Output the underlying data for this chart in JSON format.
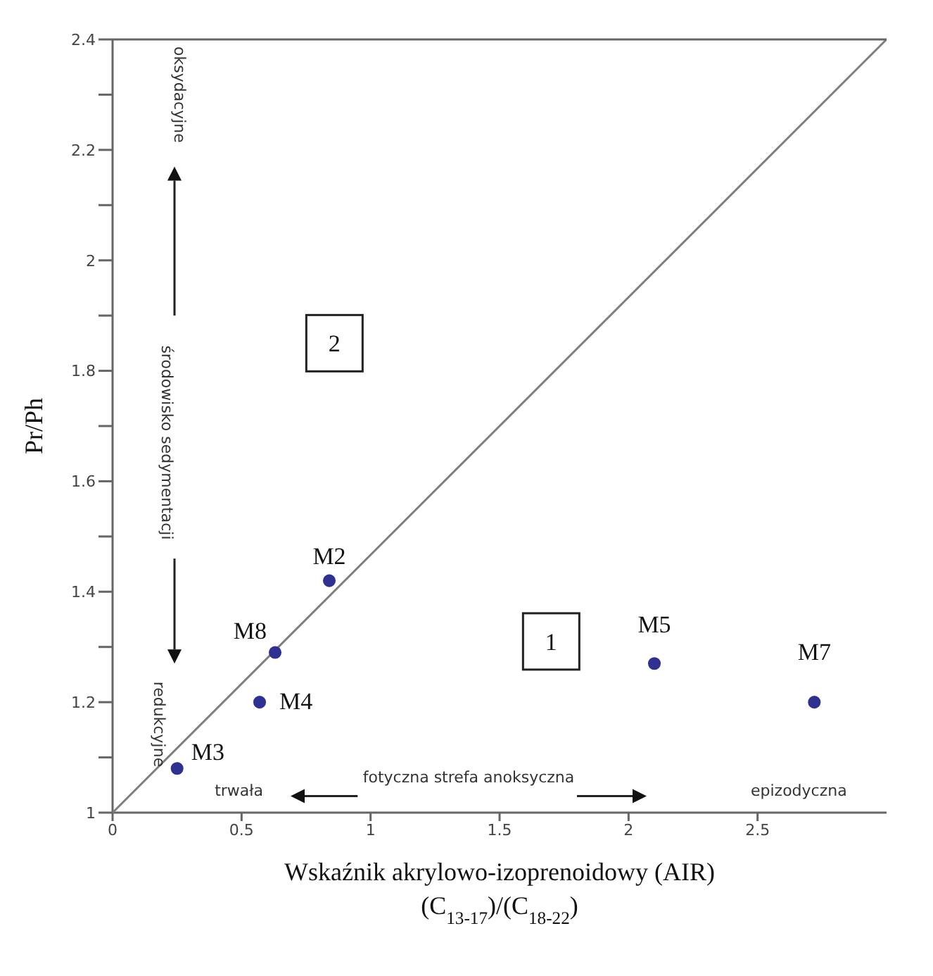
{
  "chart_data": {
    "type": "scatter",
    "xlabel": "Wskaźnik akrylowo-izoprenoidowy (AIR)\n(C$_{13-17}$)/(C$_{18-22}$)",
    "ylabel": "Pr/Ph",
    "xlim": [
      0,
      3
    ],
    "ylim": [
      1,
      2.4
    ],
    "xticks": [
      0,
      0.5,
      1,
      1.5,
      2,
      2.5
    ],
    "yticks": [
      1,
      {
        "value": 1.1,
        "label": null
      },
      1.2,
      {
        "value": 1.3,
        "label": null
      },
      1.4,
      {
        "value": 1.5,
        "label": null
      },
      1.6,
      {
        "value": 1.7,
        "label": null
      },
      1.8,
      {
        "value": 1.9,
        "label": null
      },
      2,
      {
        "value": 2.1,
        "label": null
      },
      2.2,
      {
        "value": 2.3,
        "label": null
      },
      2.4
    ],
    "marker": "circle",
    "series": [
      {
        "type": "line",
        "color": "#7f7f7f",
        "x": [
          0,
          3
        ],
        "values": [
          1,
          2.4
        ],
        "marker": "none"
      },
      {
        "color": "#2e3192",
        "x": [
          0.25,
          0.57,
          0.63,
          0.84,
          2.1,
          2.72
        ],
        "values": [
          1.08,
          1.2,
          1.29,
          1.42,
          1.27,
          1.2
        ]
      }
    ],
    "annotations": [
      {
        "text": "M3",
        "x": 0.25,
        "y": 1.08
      },
      {
        "text": "M4",
        "x": 0.57,
        "y": 1.2
      },
      {
        "text": "M8",
        "x": 0.63,
        "y": 1.29
      },
      {
        "text": "M2",
        "x": 0.84,
        "y": 1.42
      },
      {
        "text": "M5",
        "x": 2.1,
        "y": 1.27
      },
      {
        "text": "M7",
        "x": 2.72,
        "y": 1.2
      },
      "1",
      "2",
      "oksydacyjne",
      "środowisko sedymentacji",
      "redukcyjne",
      "trwała",
      "fotyczna strefa anoksyczna",
      "epizodyczna"
    ]
  }
}
